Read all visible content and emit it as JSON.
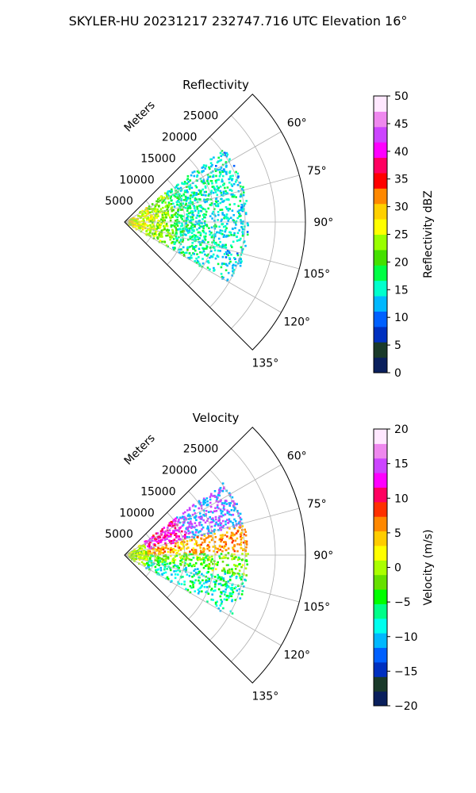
{
  "title": "SKYLER-HU  20231217  232747.716 UTC Elevation 16°",
  "colors": {
    "grid": "#b0b0b0",
    "frame": "#000000"
  },
  "chart_data": [
    {
      "type": "heatmap",
      "title": "Reflectivity",
      "range_label": "Meters",
      "range_ticks": [
        "5000",
        "10000",
        "15000",
        "20000",
        "25000"
      ],
      "range_values": [
        5000,
        10000,
        15000,
        20000,
        25000
      ],
      "rmax": 30000,
      "azimuth_range": [
        45,
        135
      ],
      "azimuth_ticks": [
        "60°",
        "75°",
        "90°",
        "105°",
        "120°",
        "135°"
      ],
      "azimuth_values": [
        60,
        75,
        90,
        105,
        120,
        135
      ],
      "colorbar": {
        "label": "Reflectivity dBZ",
        "min": 0,
        "max": 50,
        "ticks": [
          "0",
          "5",
          "10",
          "15",
          "20",
          "25",
          "30",
          "35",
          "40",
          "45",
          "50"
        ],
        "stops": [
          "#0a1f5c",
          "#1a3a2a",
          "#0030c0",
          "#0060ff",
          "#00b8ff",
          "#00ffcc",
          "#00ff44",
          "#44e000",
          "#99ff00",
          "#ffff00",
          "#ffd000",
          "#ff8800",
          "#ff0000",
          "#ff0060",
          "#ff00ff",
          "#cc44ff",
          "#ee88ee",
          "#ffe8ff"
        ]
      }
    },
    {
      "type": "heatmap",
      "title": "Velocity",
      "range_label": "Meters",
      "range_ticks": [
        "5000",
        "10000",
        "15000",
        "20000",
        "25000"
      ],
      "range_values": [
        5000,
        10000,
        15000,
        20000,
        25000
      ],
      "rmax": 30000,
      "azimuth_range": [
        45,
        135
      ],
      "azimuth_ticks": [
        "60°",
        "75°",
        "90°",
        "105°",
        "120°",
        "135°"
      ],
      "azimuth_values": [
        60,
        75,
        90,
        105,
        120,
        135
      ],
      "colorbar": {
        "label": "Velocity (m/s)",
        "min": -20,
        "max": 20,
        "ticks": [
          "−20",
          "−15",
          "−10",
          "−5",
          "0",
          "5",
          "10",
          "15",
          "20"
        ],
        "stops": [
          "#0a1f5c",
          "#1a3a2a",
          "#0030c0",
          "#0060ff",
          "#00b8ff",
          "#00ffee",
          "#00ff88",
          "#00ff00",
          "#66e000",
          "#aaff00",
          "#ffff00",
          "#ffcc00",
          "#ff8800",
          "#ff3000",
          "#ff0060",
          "#ff00ff",
          "#cc44ff",
          "#ee88ee",
          "#ffe8ff"
        ]
      }
    }
  ]
}
